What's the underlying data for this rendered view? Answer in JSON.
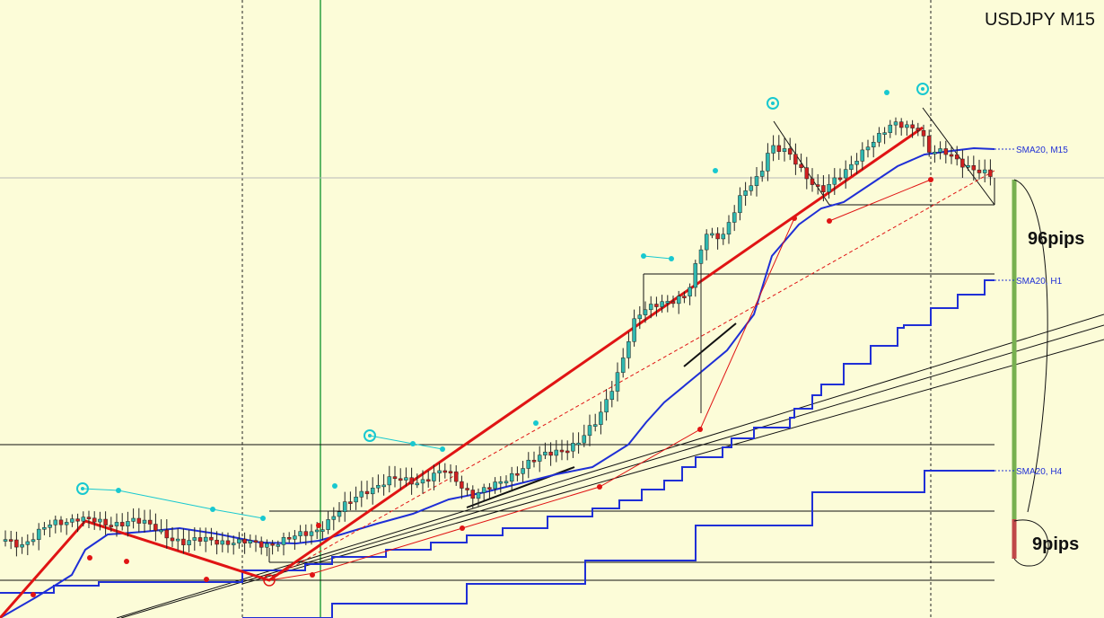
{
  "title": "USDJPY M15",
  "colors": {
    "background": "#fcfcd8",
    "sma_m15": "#1f2fd6",
    "sma_h1": "#1f2fd6",
    "sma_h4": "#1f2fd6",
    "trend_red": "#e01414",
    "dots_cyan": "#18c8d0",
    "dots_red": "#e01414",
    "candle_bull": "#30b8b0",
    "candle_bear": "#d02020",
    "green_bar": "#78b050",
    "red_bar": "#c04848"
  },
  "labels": {
    "sma_m15": "SMA20, M15",
    "sma_h1": "SMA20, H1",
    "sma_h4": "SMA20, H4"
  },
  "annotations": {
    "big_move": "96pips",
    "small_move": "9pips"
  },
  "chart_data": {
    "type": "line",
    "title": "USDJPY M15",
    "series": [
      {
        "name": "SMA20, M15"
      },
      {
        "name": "SMA20, H1"
      },
      {
        "name": "SMA20, H4"
      }
    ],
    "annotations": [
      "96pips",
      "9pips"
    ]
  }
}
